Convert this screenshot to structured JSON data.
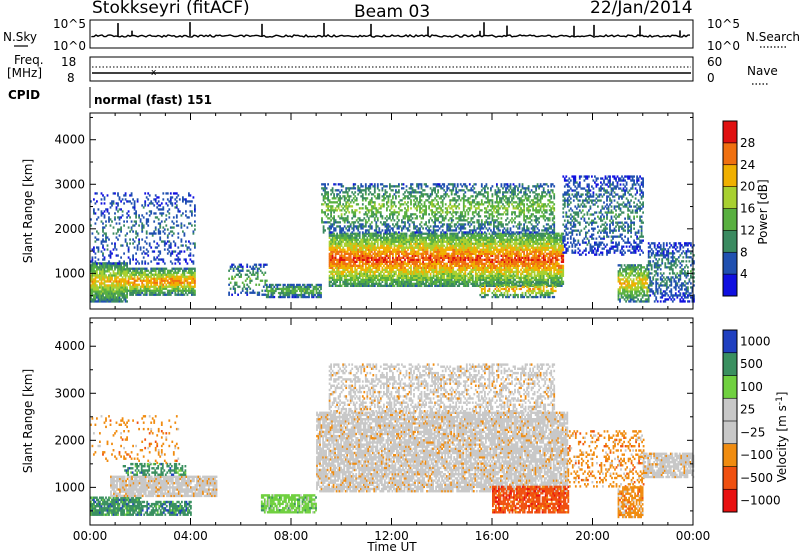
{
  "header": {
    "station": "Stokkseyri (fitACF)",
    "beam": "Beam 03",
    "date": "22/Jan/2014"
  },
  "top_panel": {
    "left_label": "N.Sky",
    "right_label": "N.Search",
    "left_ticks": [
      "10^5",
      "10^0"
    ],
    "right_ticks": [
      "10^5",
      "10^0"
    ]
  },
  "freq_panel": {
    "left_label_line1": "Freq.",
    "left_label_line2": "[MHz]",
    "left_ticks": [
      "18",
      "8"
    ],
    "right_label": "Nave",
    "right_ticks": [
      "60",
      "0"
    ]
  },
  "cpid_panel": {
    "label": "CPID",
    "text": "normal (fast) 151"
  },
  "colors": {
    "power": [
      "#1010e0",
      "#2050b0",
      "#3a8a60",
      "#58b040",
      "#a8d030",
      "#f0b000",
      "#f07010",
      "#e01010"
    ],
    "velocity": [
      "#e81010",
      "#f05010",
      "#f08c10",
      "#c8c8c8",
      "#c8c8c8",
      "#70d040",
      "#3a9060",
      "#2040c0"
    ],
    "ground_scatter": "#c8c8c8"
  },
  "chart_data": [
    {
      "type": "heatmap",
      "quantity": "Power",
      "ylabel": "Slant Range [km]",
      "xlim_hours": [
        0,
        24
      ],
      "ylim_km": [
        200,
        4600
      ],
      "yticks": [
        "1000",
        "2000",
        "3000",
        "4000"
      ],
      "colorbar": {
        "label": "Power [dB]",
        "ticks": [
          "4",
          "8",
          "12",
          "16",
          "20",
          "24",
          "28"
        ],
        "range": [
          0,
          32
        ]
      },
      "regions": [
        {
          "t0": 0.0,
          "t1": 1.5,
          "r0": 350,
          "r1": 1250,
          "peak": 22,
          "edge": 8,
          "density": 0.85
        },
        {
          "t0": 1.5,
          "t1": 4.2,
          "r0": 500,
          "r1": 1100,
          "peak": 26,
          "edge": 8,
          "density": 0.8
        },
        {
          "t0": 5.5,
          "t1": 7.0,
          "r0": 500,
          "r1": 1200,
          "peak": 14,
          "edge": 4,
          "density": 0.35
        },
        {
          "t0": 7.0,
          "t1": 9.2,
          "r0": 450,
          "r1": 750,
          "peak": 14,
          "edge": 6,
          "density": 0.75
        },
        {
          "t0": 9.5,
          "t1": 18.8,
          "r0": 700,
          "r1": 1900,
          "peak": 28,
          "edge": 10,
          "density": 0.85
        },
        {
          "t0": 9.2,
          "t1": 18.5,
          "r0": 1900,
          "r1": 3000,
          "peak": 16,
          "edge": 6,
          "density": 0.45
        },
        {
          "t0": 15.5,
          "t1": 18.5,
          "r0": 450,
          "r1": 800,
          "peak": 24,
          "edge": 8,
          "density": 0.5
        },
        {
          "t0": 18.8,
          "t1": 22.0,
          "r0": 1400,
          "r1": 3200,
          "peak": 10,
          "edge": 4,
          "density": 0.4
        },
        {
          "t0": 21.0,
          "t1": 22.2,
          "r0": 350,
          "r1": 1200,
          "peak": 22,
          "edge": 8,
          "density": 0.7
        },
        {
          "t0": 22.2,
          "t1": 24.0,
          "r0": 350,
          "r1": 1700,
          "peak": 10,
          "edge": 4,
          "density": 0.45
        },
        {
          "t0": 0.0,
          "t1": 4.2,
          "r0": 1200,
          "r1": 2800,
          "peak": 8,
          "edge": 4,
          "density": 0.22
        }
      ]
    },
    {
      "type": "heatmap",
      "quantity": "Velocity",
      "xlabel": "Time UT",
      "ylabel": "Slant Range [km]",
      "xlim_hours": [
        0,
        24
      ],
      "ylim_km": [
        200,
        4600
      ],
      "xticks": [
        "00:00",
        "04:00",
        "08:00",
        "12:00",
        "16:00",
        "20:00",
        "00:00"
      ],
      "yticks": [
        "1000",
        "2000",
        "3000",
        "4000"
      ],
      "colorbar": {
        "label": "Velocity [m s^-1]",
        "ticks": [
          "1000",
          "500",
          "100",
          "25",
          "−25",
          "−100",
          "−500",
          "−1000"
        ]
      },
      "regions": [
        {
          "t0": 0.0,
          "t1": 2.0,
          "r0": 400,
          "r1": 800,
          "class": 6,
          "density": 0.85
        },
        {
          "t0": 2.0,
          "t1": 4.0,
          "r0": 400,
          "r1": 700,
          "class": 6,
          "density": 0.7
        },
        {
          "t0": 0.8,
          "t1": 5.0,
          "r0": 800,
          "r1": 1250,
          "class": 3,
          "density": 0.85
        },
        {
          "t0": 1.3,
          "t1": 3.8,
          "r0": 1250,
          "r1": 1500,
          "class": 6,
          "density": 0.5
        },
        {
          "t0": 6.8,
          "t1": 9.0,
          "r0": 450,
          "r1": 850,
          "class": 5,
          "density": 0.8
        },
        {
          "t0": 9.0,
          "t1": 19.0,
          "r0": 900,
          "r1": 2600,
          "class": 3,
          "density": 0.8
        },
        {
          "t0": 9.5,
          "t1": 18.5,
          "r0": 2600,
          "r1": 3600,
          "class": 3,
          "density": 0.45
        },
        {
          "t0": 16.0,
          "t1": 19.0,
          "r0": 450,
          "r1": 1000,
          "class": 1,
          "density": 0.8
        },
        {
          "t0": 19.0,
          "t1": 22.0,
          "r0": 1000,
          "r1": 2200,
          "class": 2,
          "density": 0.25
        },
        {
          "t0": 21.0,
          "t1": 22.0,
          "r0": 350,
          "r1": 1000,
          "class": 2,
          "density": 0.7
        },
        {
          "t0": 22.0,
          "t1": 24.0,
          "r0": 1200,
          "r1": 1700,
          "class": 3,
          "density": 0.8
        },
        {
          "t0": 0.0,
          "t1": 3.5,
          "r0": 1500,
          "r1": 2500,
          "class": 2,
          "density": 0.12
        }
      ]
    }
  ]
}
